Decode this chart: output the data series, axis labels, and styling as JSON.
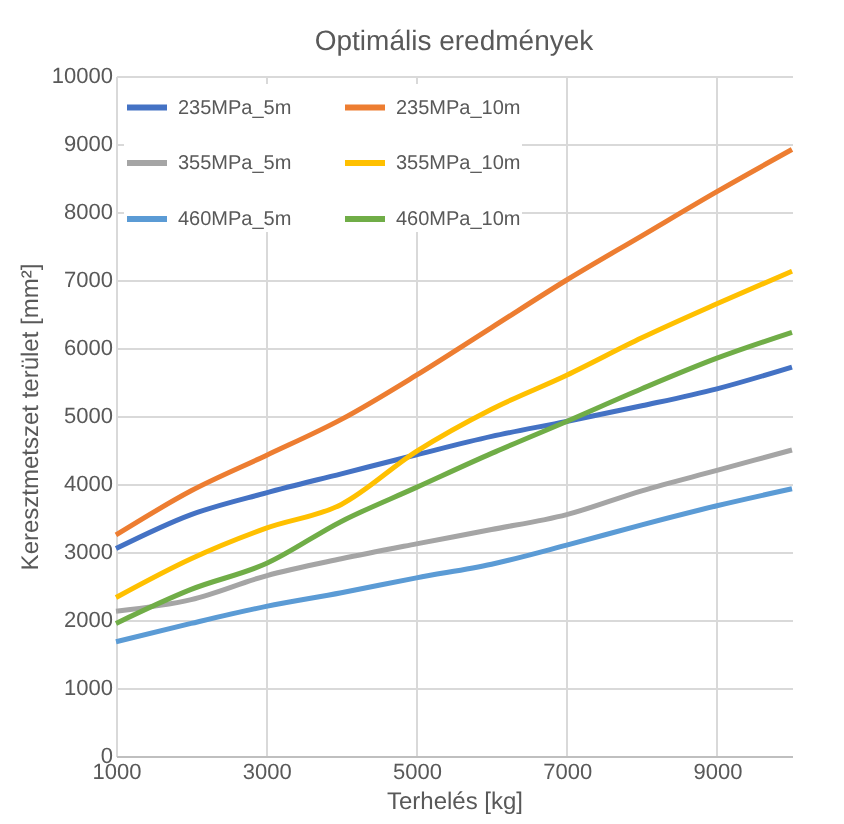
{
  "chart_data": {
    "type": "line",
    "title": "Optimális eredmények",
    "xlabel": "Terhelés [kg]",
    "ylabel": "Keresztmetszet terület [mm²]",
    "x": [
      1000,
      2000,
      3000,
      4000,
      5000,
      6000,
      7000,
      8000,
      9000,
      10000
    ],
    "series": [
      {
        "name": "235MPa_5m",
        "color": "#4472c4",
        "values": [
          3050,
          3550,
          3870,
          4150,
          4430,
          4700,
          4920,
          5150,
          5400,
          5720
        ]
      },
      {
        "name": "235MPa_10m",
        "color": "#ed7d31",
        "values": [
          3250,
          3900,
          4420,
          4950,
          5600,
          6300,
          7000,
          7650,
          8300,
          8920
        ]
      },
      {
        "name": "355MPa_5m",
        "color": "#a5a5a5",
        "values": [
          2130,
          2300,
          2650,
          2900,
          3120,
          3330,
          3550,
          3900,
          4200,
          4500
        ]
      },
      {
        "name": "355MPa_10m",
        "color": "#ffc000",
        "values": [
          2330,
          2900,
          3350,
          3700,
          4480,
          5100,
          5600,
          6150,
          6650,
          7130
        ]
      },
      {
        "name": "460MPa_5m",
        "color": "#5b9bd5",
        "values": [
          1680,
          1950,
          2200,
          2400,
          2620,
          2820,
          3100,
          3400,
          3680,
          3930
        ]
      },
      {
        "name": "460MPa_10m",
        "color": "#70ad47",
        "values": [
          1950,
          2450,
          2830,
          3450,
          3950,
          4450,
          4920,
          5400,
          5850,
          6230
        ]
      }
    ],
    "xlim": [
      1000,
      10000
    ],
    "xticks": [
      1000,
      3000,
      5000,
      7000,
      9000
    ],
    "ylim": [
      0,
      10000
    ],
    "yticks": [
      0,
      1000,
      2000,
      3000,
      4000,
      5000,
      6000,
      7000,
      8000,
      9000,
      10000
    ],
    "grid": true,
    "legend": "top left",
    "marker": "none",
    "line_style": "solid"
  }
}
